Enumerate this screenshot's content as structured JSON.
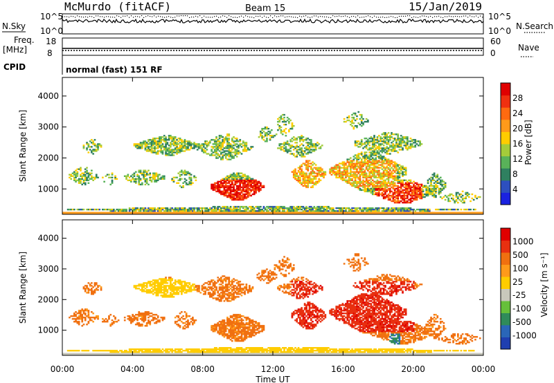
{
  "header": {
    "station": "McMurdo (fitACF)",
    "beam": "Beam 15",
    "date": "15/Jan/2019"
  },
  "strips": {
    "nsky_label": "N.Sky",
    "nsearch_label": "N.Search",
    "nsky_ticks": [
      "10^5",
      "10^0"
    ],
    "nsearch_ticks": [
      "10^5",
      "10^0"
    ],
    "freq_label_1": "Freq.",
    "freq_label_2": "[MHz]",
    "freq_ticks": [
      "18",
      "8"
    ],
    "nave_label": "Nave",
    "nave_ticks": [
      "60",
      "0"
    ],
    "cpid_label": "CPID",
    "cpid_value": "normal (fast) 151 RF"
  },
  "chart_data": [
    {
      "type": "heatmap",
      "name": "power",
      "ylabel": "Slant Range [km]",
      "yticks": [
        "4000",
        "3000",
        "2000",
        "1000"
      ],
      "ytick_values": [
        4000,
        3000,
        2000,
        1000
      ],
      "ylim": [
        180,
        4600
      ],
      "xlim": [
        0,
        24
      ],
      "xtick_labels": [
        "00:00",
        "04:00",
        "08:00",
        "12:00",
        "16:00",
        "20:00",
        "00:00"
      ],
      "colorbar": {
        "label": "Power [dB]",
        "ticks": [
          "28",
          "24",
          "20",
          "16",
          "12",
          "8",
          "4"
        ],
        "range": [
          0,
          30
        ],
        "colors": [
          "#1a22e0",
          "#2d4fbf",
          "#2f8060",
          "#59b259",
          "#a4cc3a",
          "#ffcc00",
          "#ff9a1a",
          "#ff6a10",
          "#f03010",
          "#e00000"
        ]
      }
    },
    {
      "type": "heatmap",
      "name": "velocity",
      "ylabel": "Slant Range [km]",
      "yticks": [
        "4000",
        "3000",
        "2000",
        "1000"
      ],
      "ytick_values": [
        4000,
        3000,
        2000,
        1000
      ],
      "ylim": [
        180,
        4600
      ],
      "xlim": [
        0,
        24
      ],
      "xlabel": "Time UT",
      "xtick_labels": [
        "00:00",
        "04:00",
        "08:00",
        "12:00",
        "16:00",
        "20:00",
        "00:00"
      ],
      "colorbar": {
        "label": "Velocity [m s⁻¹]",
        "ticks": [
          "1000",
          "500",
          "100",
          "25",
          "-25",
          "-100",
          "-500",
          "-1000"
        ],
        "colors": [
          "#1f3fb0",
          "#2a66b8",
          "#2f8b5a",
          "#66c03a",
          "#c8c8bc",
          "#ffcc00",
          "#ff9a1a",
          "#f07010",
          "#e83010",
          "#e00000"
        ]
      }
    }
  ]
}
